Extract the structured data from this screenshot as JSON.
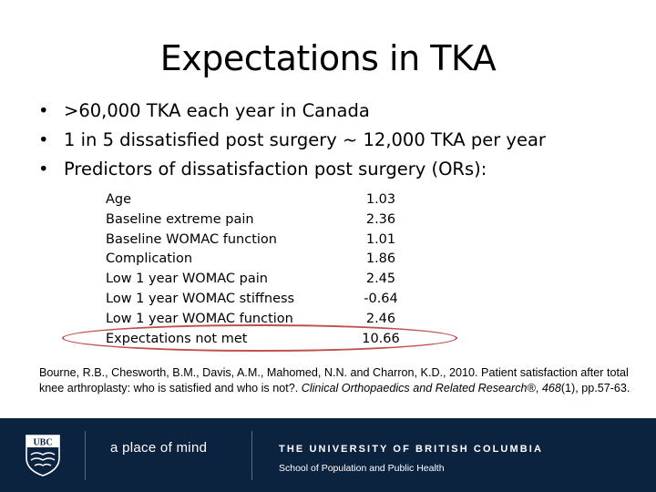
{
  "title": "Expectations in TKA",
  "bullets": [
    "•",
    ">60,000 TKA each year in Canada",
    "1 in 5 dissatisfied post surgery ~ 12,000 TKA per year",
    "Predictors of dissatisfaction post surgery (ORs):"
  ],
  "predictors": [
    {
      "name": "Age",
      "value": "1.03"
    },
    {
      "name": "Baseline extreme pain",
      "value": "2.36"
    },
    {
      "name": "Baseline WOMAC function",
      "value": "1.01"
    },
    {
      "name": "Complication",
      "value": "1.86"
    },
    {
      "name": "Low 1 year WOMAC pain",
      "value": "2.45"
    },
    {
      "name": "Low 1 year WOMAC stiffness",
      "value": "-0.64"
    },
    {
      "name": "Low 1 year WOMAC function",
      "value": "2.46"
    },
    {
      "name": "Expectations not met",
      "value": "10.66"
    }
  ],
  "citation": {
    "authors": "Bourne, R.B., Chesworth, B.M., Davis, A.M., Mahomed, N.N. and Charron, K.D., 2010. Patient satisfaction after total knee arthroplasty: who is satisfied and who is not?. ",
    "journal": "Clinical Orthopaedics and Related Research®",
    "sep1": ", ",
    "volume": "468",
    "rest": "(1), pp.57-63."
  },
  "footer": {
    "logo_text": "UBC",
    "tagline": "a place of mind",
    "university": "THE UNIVERSITY OF BRITISH COLUMBIA",
    "school": "School of Population and Public Health"
  },
  "colors": {
    "footer_bg": "#0c2340",
    "highlight": "#c0504d"
  }
}
